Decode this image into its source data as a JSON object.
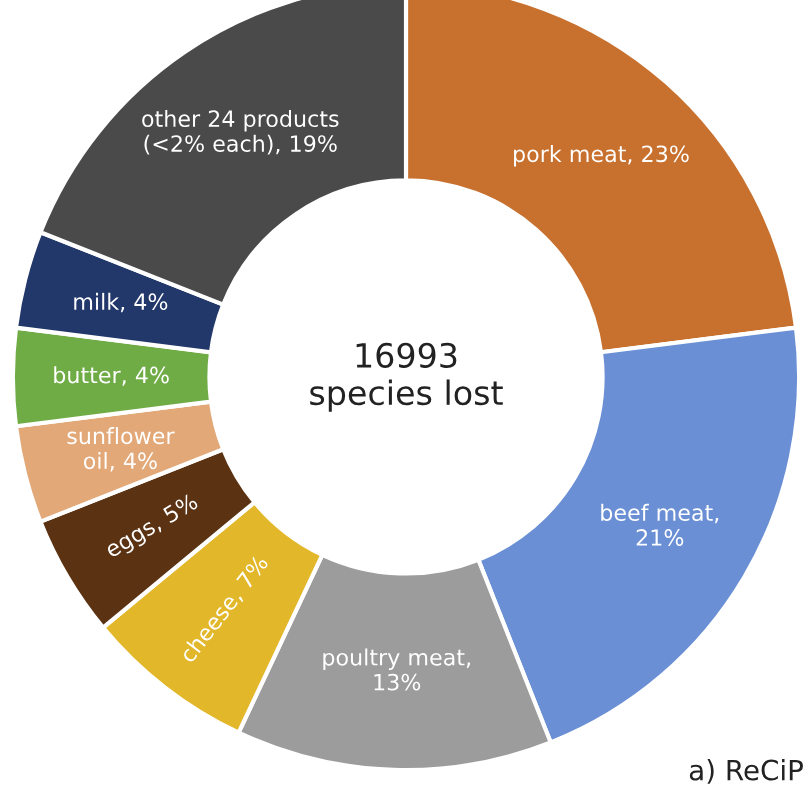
{
  "chart_data": {
    "type": "donut",
    "categories": [
      "pork meat, 23%",
      "beef meat,\n21%",
      "poultry meat,\n13%",
      "cheese, 7%",
      "eggs, 5%",
      "sunflower\noil, 4%",
      "butter, 4%",
      "milk, 4%",
      "other 24 products\n(<2% each), 19%"
    ],
    "values": [
      23,
      21,
      13,
      7,
      5,
      4,
      4,
      4,
      19
    ],
    "colors": [
      "#c8702e",
      "#6a8fd4",
      "#9c9c9c",
      "#e3b72a",
      "#5b3212",
      "#e3a878",
      "#6fac46",
      "#22386a",
      "#4a4a4a"
    ],
    "annotations": [
      "16993\nspecies lost",
      "a) ReCiP"
    ]
  }
}
